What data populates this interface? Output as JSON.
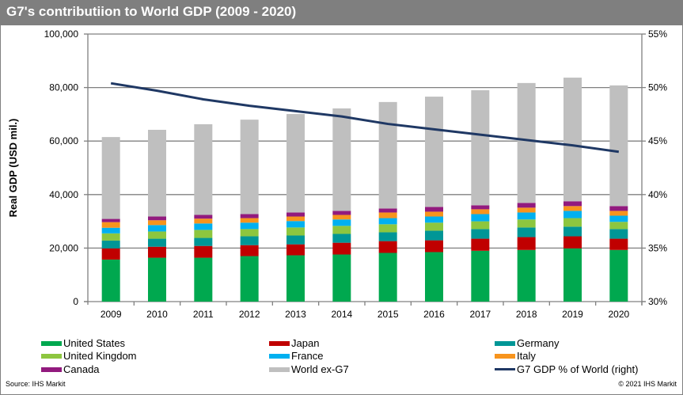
{
  "title": "G7's contributiion to World GDP (2009 - 2020)",
  "source": "Source:  IHS Markit",
  "copyright": "© 2021  IHS Markit",
  "chart_data": {
    "type": "bar",
    "stacked": true,
    "title": "G7's contributiion to World GDP (2009 - 2020)",
    "xlabel": "",
    "ylabel": "Real GDP (USD mil.)",
    "y2label": "",
    "ylim": [
      0,
      100000
    ],
    "y2lim": [
      0.3,
      0.55
    ],
    "yticks": [
      "0",
      "20,000",
      "40,000",
      "60,000",
      "80,000",
      "100,000"
    ],
    "y2ticks": [
      "30%",
      "35%",
      "40%",
      "45%",
      "50%",
      "55%"
    ],
    "grid": true,
    "legend_position": "bottom",
    "categories": [
      "2009",
      "2010",
      "2011",
      "2012",
      "2013",
      "2014",
      "2015",
      "2016",
      "2017",
      "2018",
      "2019",
      "2020"
    ],
    "series": [
      {
        "name": "United States",
        "color": "#00a84f",
        "values": [
          15700,
          16400,
          16400,
          17000,
          17300,
          17600,
          18200,
          18500,
          19000,
          19300,
          19900,
          19300
        ]
      },
      {
        "name": "Japan",
        "color": "#c00000",
        "values": [
          4200,
          4100,
          4400,
          4100,
          4100,
          4400,
          4400,
          4400,
          4500,
          4800,
          4500,
          4200
        ]
      },
      {
        "name": "Germany",
        "color": "#009696",
        "values": [
          2900,
          3000,
          3000,
          3300,
          3300,
          3300,
          3300,
          3600,
          3600,
          3600,
          3600,
          3600
        ]
      },
      {
        "name": "United Kingdom",
        "color": "#8dc63f",
        "values": [
          2700,
          2700,
          3000,
          2700,
          3000,
          3000,
          3000,
          3000,
          2900,
          3000,
          3200,
          2700
        ]
      },
      {
        "name": "France",
        "color": "#00b0f0",
        "values": [
          2100,
          2400,
          2400,
          2400,
          2400,
          2400,
          2300,
          2300,
          2700,
          2600,
          2700,
          2300
        ]
      },
      {
        "name": "Italy",
        "color": "#f7941d",
        "values": [
          2100,
          1800,
          1800,
          1700,
          1700,
          1700,
          2100,
          1800,
          1800,
          1800,
          1800,
          1800
        ]
      },
      {
        "name": "Canada",
        "color": "#921a7e",
        "values": [
          1200,
          1400,
          1400,
          1500,
          1500,
          1500,
          1500,
          1800,
          1500,
          1800,
          1800,
          1800
        ]
      },
      {
        "name": "World ex-G7",
        "color": "#bfbfbf",
        "values": [
          30600,
          32400,
          33900,
          35300,
          36800,
          38300,
          39800,
          41200,
          43000,
          44800,
          46200,
          45100
        ]
      }
    ],
    "line_series": {
      "name": "G7 GDP % of World (right)",
      "color": "#1f3864",
      "axis": "right",
      "values": [
        0.504,
        0.497,
        0.489,
        0.483,
        0.478,
        0.473,
        0.466,
        0.461,
        0.456,
        0.451,
        0.446,
        0.44
      ]
    }
  },
  "legend": [
    {
      "label": "United States",
      "color": "#00a84f",
      "kind": "bar"
    },
    {
      "label": "Japan",
      "color": "#c00000",
      "kind": "bar"
    },
    {
      "label": "Germany",
      "color": "#009696",
      "kind": "bar"
    },
    {
      "label": "United Kingdom",
      "color": "#8dc63f",
      "kind": "bar"
    },
    {
      "label": "France",
      "color": "#00b0f0",
      "kind": "bar"
    },
    {
      "label": "Italy",
      "color": "#f7941d",
      "kind": "bar"
    },
    {
      "label": "Canada",
      "color": "#921a7e",
      "kind": "bar"
    },
    {
      "label": "World ex-G7",
      "color": "#bfbfbf",
      "kind": "bar"
    },
    {
      "label": "G7 GDP % of World (right)",
      "color": "#1f3864",
      "kind": "line"
    }
  ]
}
